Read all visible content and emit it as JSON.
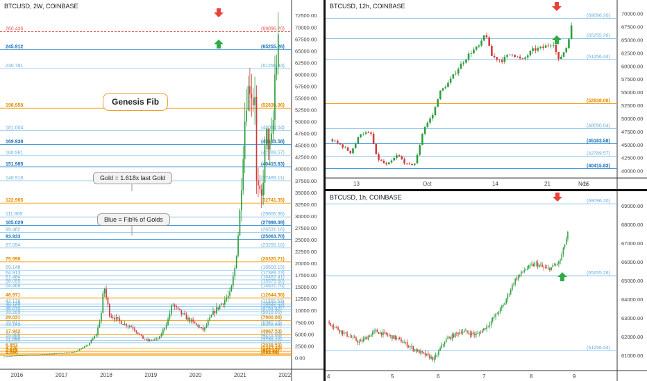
{
  "colors": {
    "gold": "#f5a623",
    "blue": "#2b8fd8",
    "lightblue": "#8cc8ee",
    "red_line": "#e05555",
    "up": "#2e9e3e",
    "down": "#d23a3a",
    "arrow_red": "#e8423a",
    "arrow_green": "#2eab48"
  },
  "charts": [
    {
      "id": "left",
      "title": "BTCUSD, 2W, COINBASE",
      "xticks": [
        "2016",
        "2017",
        "2018",
        "2019",
        "2020",
        "2021",
        "2022"
      ],
      "yticks": [
        "72500.00",
        "70000.00",
        "67500.00",
        "65000.00",
        "62500.00",
        "60000.00",
        "57500.00",
        "55000.00",
        "52500.00",
        "50000.00",
        "47500.00",
        "45000.00",
        "42500.00",
        "40000.00",
        "37500.00",
        "35000.00",
        "32500.00",
        "30000.00",
        "27500.00",
        "25000.00",
        "22500.00",
        "20000.00",
        "17500.00",
        "15000.00",
        "12500.00",
        "10000.00",
        "7500.00",
        "5000.00",
        "2500.00",
        "0.00"
      ],
      "ylim": [
        -2000,
        74000
      ],
      "fib_levels": [
        {
          "left": "260.436",
          "right": "(69096.20)",
          "value": 69096.2,
          "kind": "red"
        },
        {
          "left": "245.912",
          "right": "(65255.26)",
          "value": 65255.26,
          "kind": "blue"
        },
        {
          "left": "230.791",
          "right": "(61256.44)",
          "value": 61256.44,
          "kind": "light"
        },
        {
          "left": "198.958",
          "right": "(52838.06)",
          "value": 52838.06,
          "kind": "gold"
        },
        {
          "left": "181.004",
          "right": "(48090.04)",
          "value": 48090.04,
          "kind": "light"
        },
        {
          "left": "169.938",
          "right": "(45163.58)",
          "value": 45163.58,
          "kind": "blue"
        },
        {
          "left": "160.961",
          "right": "(42789.57)",
          "value": 42789.57,
          "kind": "light"
        },
        {
          "left": "151.985",
          "right": "(40415.83)",
          "value": 40415.83,
          "kind": "blue"
        },
        {
          "left": "140.918",
          "right": "(37489.11)",
          "value": 37489.11,
          "kind": "light"
        },
        {
          "left": "122.965",
          "right": "(32741.35)",
          "value": 32741.35,
          "kind": "gold"
        },
        {
          "left": "111.869",
          "right": "(29806.96)",
          "value": 29806.96,
          "kind": "light"
        },
        {
          "left": "105.029",
          "right": "(27998.09)",
          "value": 27998.09,
          "kind": "blue"
        },
        {
          "left": "99.482",
          "right": "(26531.16)",
          "value": 26531.16,
          "kind": "light"
        },
        {
          "left": "93.933",
          "right": "(25063.70)",
          "value": 25063.7,
          "kind": "blue"
        },
        {
          "left": "87.094",
          "right": "(23255.10)",
          "value": 23255.1,
          "kind": "light"
        },
        {
          "left": "75.998",
          "right": "(20320.71)",
          "value": 20320.71,
          "kind": "gold"
        },
        {
          "left": "69.148",
          "right": "(18509.19)",
          "value": 18509.19,
          "kind": "light"
        },
        {
          "left": "64.913",
          "right": "(17389.23)",
          "value": 17389.23,
          "kind": "light"
        },
        {
          "left": "61.484",
          "right": "(16482.41)",
          "value": 16482.41,
          "kind": "light"
        },
        {
          "left": "58.055",
          "right": "(15575.60)",
          "value": 15575.6,
          "kind": "light"
        },
        {
          "left": "54.488",
          "right": "(14631.76)",
          "value": 14631.76,
          "kind": "light"
        },
        {
          "left": "46.971",
          "right": "(12644.38)",
          "value": 12644.38,
          "kind": "gold"
        },
        {
          "left": "42.126",
          "right": "(11355.53)",
          "value": 11355.53,
          "kind": "light"
        },
        {
          "left": "40.139",
          "right": "(10830.07)",
          "value": 10830.07,
          "kind": "light"
        },
        {
          "left": "38.102",
          "right": "(10291.36)",
          "value": 10291.36,
          "kind": "light"
        },
        {
          "left": "36.070",
          "right": "(9753.42)",
          "value": 9753.42,
          "kind": "light"
        },
        {
          "left": "33.289",
          "right": "(9018.05)",
          "value": 9018.05,
          "kind": "light"
        },
        {
          "left": "29.031",
          "right": "(7900.06)",
          "value": 7900.06,
          "kind": "gold"
        },
        {
          "left": "25.412",
          "right": "(6945.18)",
          "value": 6945.18,
          "kind": "light"
        },
        {
          "left": "23.183",
          "right": "(6355.69)",
          "value": 6355.69,
          "kind": "light"
        },
        {
          "left": "17.942",
          "right": "(4967.53)",
          "value": 4967.53,
          "kind": "gold"
        },
        {
          "left": "15.306",
          "right": "(4271.00)",
          "value": 4271.0,
          "kind": "light"
        },
        {
          "left": "12.889",
          "right": "(3632.22)",
          "value": 3632.22,
          "kind": "light"
        },
        {
          "left": "11.099",
          "right": "(3159.22)",
          "value": 3159.22,
          "kind": "light"
        },
        {
          "left": "6.853",
          "right": "(2039.53)",
          "value": 2039.53,
          "kind": "gold"
        },
        {
          "left": "4.236",
          "right": "(1347.49)",
          "value": 1347.49,
          "kind": "gold"
        },
        {
          "left": "2.618",
          "right": "(919.92)",
          "value": 919.92,
          "kind": "gold"
        },
        {
          "left": "1.618",
          "right": "(655.68)",
          "value": 655.68,
          "kind": "gold"
        },
        {
          "left": "1.000",
          "right": "(482.58)",
          "value": 482.58,
          "kind": "gold"
        }
      ],
      "callouts": [
        {
          "text": "Genesis Fib",
          "style": "big"
        },
        {
          "text": "Gold = 1.618x last Gold",
          "style": "small"
        },
        {
          "text": "Blue = Fib% of Golds",
          "style": "small"
        }
      ]
    },
    {
      "id": "right_top",
      "title": "BTCUSD, 12h, COINBASE",
      "xticks": [
        "13",
        "Oct",
        "14",
        "21",
        "Nov",
        "15"
      ],
      "yticks": [
        "70000.00",
        "67500.00",
        "65000.00",
        "62500.00",
        "60000.00",
        "57500.00",
        "55000.00",
        "52500.00",
        "50000.00",
        "47500.00",
        "45000.00",
        "42500.00",
        "40000.00"
      ],
      "ylim": [
        38500,
        71000
      ],
      "fib_levels": [
        {
          "right": "(69096.20)",
          "value": 69096.2,
          "kind": "light"
        },
        {
          "right": "(65255.26)",
          "value": 65255.26,
          "kind": "light"
        },
        {
          "right": "(61256.44)",
          "value": 61256.44,
          "kind": "light"
        },
        {
          "right": "(52838.06)",
          "value": 52838.06,
          "kind": "gold"
        },
        {
          "right": "(48090.04)",
          "value": 48090.04,
          "kind": "light"
        },
        {
          "right": "(45163.58)",
          "value": 45163.58,
          "kind": "blue"
        },
        {
          "right": "(42789.57)",
          "value": 42789.57,
          "kind": "light"
        },
        {
          "right": "(40415.83)",
          "value": 40415.83,
          "kind": "blue"
        }
      ]
    },
    {
      "id": "right_bottom",
      "title": "BTCUSD, 1h, COINBASE",
      "xticks": [
        "4",
        "5",
        "6",
        "7",
        "8",
        "9"
      ],
      "yticks": [
        "69000.00",
        "68000.00",
        "67000.00",
        "66000.00",
        "65000.00",
        "64000.00",
        "63000.00",
        "62000.00",
        "61000.00"
      ],
      "ylim": [
        60300,
        69400
      ],
      "fib_levels": [
        {
          "right": "(69096.20)",
          "value": 69096.2,
          "kind": "light"
        },
        {
          "right": "(65255.26)",
          "value": 65255.26,
          "kind": "light"
        },
        {
          "right": "(61256.44)",
          "value": 61256.44,
          "kind": "light"
        }
      ]
    }
  ],
  "chart_data": [
    {
      "type": "candlestick",
      "title": "BTCUSD, 2W, COINBASE",
      "x_range": [
        "2015-09",
        "2022-06"
      ],
      "ylim": [
        0,
        72500
      ],
      "close_path": [
        [
          2015.7,
          240
        ],
        [
          2016.0,
          430
        ],
        [
          2016.5,
          650
        ],
        [
          2017.0,
          950
        ],
        [
          2017.3,
          1200
        ],
        [
          2017.6,
          2600
        ],
        [
          2017.8,
          5000
        ],
        [
          2017.93,
          10500
        ],
        [
          2017.96,
          16000
        ],
        [
          2018.0,
          13500
        ],
        [
          2018.1,
          9000
        ],
        [
          2018.2,
          8500
        ],
        [
          2018.4,
          7200
        ],
        [
          2018.6,
          6500
        ],
        [
          2018.85,
          4000
        ],
        [
          2018.95,
          3600
        ],
        [
          2019.2,
          4000
        ],
        [
          2019.4,
          8000
        ],
        [
          2019.5,
          11500
        ],
        [
          2019.6,
          10200
        ],
        [
          2019.8,
          8500
        ],
        [
          2020.0,
          7200
        ],
        [
          2020.2,
          5800
        ],
        [
          2020.4,
          9300
        ],
        [
          2020.6,
          11500
        ],
        [
          2020.8,
          13500
        ],
        [
          2020.9,
          19000
        ],
        [
          2021.0,
          29000
        ],
        [
          2021.05,
          38000
        ],
        [
          2021.1,
          47000
        ],
        [
          2021.15,
          55000
        ],
        [
          2021.25,
          58500
        ],
        [
          2021.3,
          54000
        ],
        [
          2021.35,
          57000
        ],
        [
          2021.38,
          37000
        ],
        [
          2021.45,
          34000
        ],
        [
          2021.5,
          33500
        ],
        [
          2021.55,
          41000
        ],
        [
          2021.6,
          47000
        ],
        [
          2021.7,
          44000
        ],
        [
          2021.75,
          48000
        ],
        [
          2021.8,
          61000
        ],
        [
          2021.85,
          63000
        ],
        [
          2021.87,
          67000
        ]
      ]
    },
    {
      "type": "candlestick",
      "title": "BTCUSD, 12h, COINBASE",
      "ylim": [
        40000,
        70000
      ],
      "close_path": [
        [
          0,
          46000
        ],
        [
          4,
          45000
        ],
        [
          8,
          43500
        ],
        [
          12,
          47300
        ],
        [
          16,
          47000
        ],
        [
          18,
          42500
        ],
        [
          22,
          41000
        ],
        [
          26,
          43000
        ],
        [
          30,
          41000
        ],
        [
          33,
          41500
        ],
        [
          36,
          48000
        ],
        [
          40,
          51000
        ],
        [
          42,
          54800
        ],
        [
          46,
          57000
        ],
        [
          50,
          60000
        ],
        [
          54,
          62500
        ],
        [
          58,
          64000
        ],
        [
          60,
          66500
        ],
        [
          62,
          62000
        ],
        [
          66,
          61000
        ],
        [
          70,
          62500
        ],
        [
          74,
          61000
        ],
        [
          78,
          63000
        ],
        [
          82,
          63500
        ],
        [
          86,
          64500
        ],
        [
          88,
          61000
        ],
        [
          91,
          63500
        ],
        [
          93,
          67500
        ]
      ]
    },
    {
      "type": "candlestick",
      "title": "BTCUSD, 1h, COINBASE",
      "ylim": [
        61000,
        69000
      ],
      "close_path": [
        [
          0,
          62800
        ],
        [
          6,
          62200
        ],
        [
          12,
          61700
        ],
        [
          18,
          62300
        ],
        [
          26,
          61900
        ],
        [
          34,
          61200
        ],
        [
          40,
          60800
        ],
        [
          44,
          61800
        ],
        [
          50,
          62300
        ],
        [
          56,
          62100
        ],
        [
          60,
          62600
        ],
        [
          66,
          63700
        ],
        [
          70,
          65000
        ],
        [
          74,
          65600
        ],
        [
          78,
          65900
        ],
        [
          82,
          65600
        ],
        [
          84,
          65700
        ],
        [
          87,
          66000
        ],
        [
          90,
          67500
        ]
      ]
    }
  ]
}
